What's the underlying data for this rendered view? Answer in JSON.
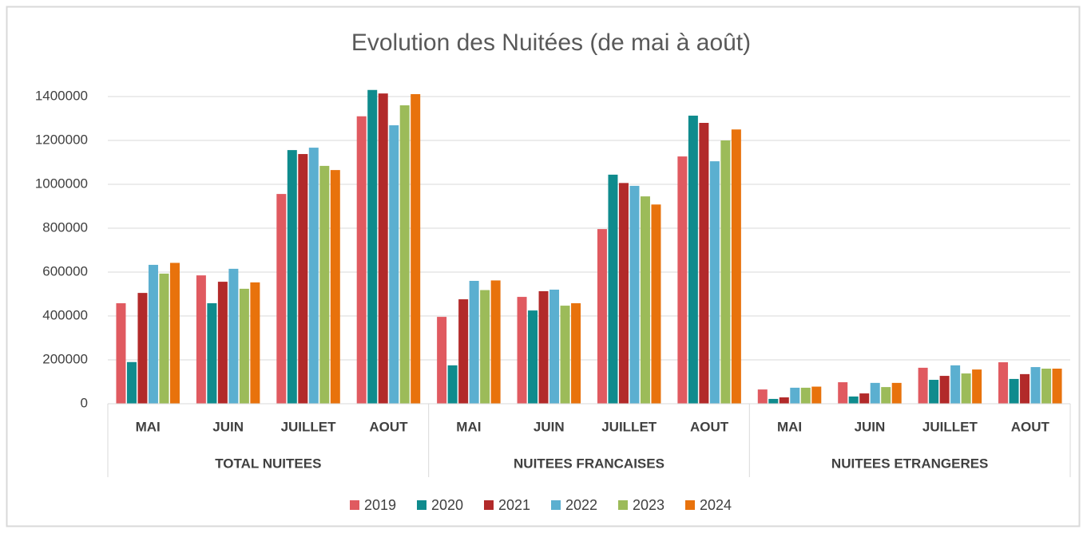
{
  "chart_data": {
    "type": "bar",
    "title": "Evolution des Nuitées (de mai à août)",
    "groups": [
      "TOTAL NUITEES",
      "NUITEES FRANCAISES",
      "NUITEES ETRANGERES"
    ],
    "categories": [
      "MAI",
      "JUIN",
      "JUILLET",
      "AOUT",
      "MAI",
      "JUIN",
      "JUILLET",
      "AOUT",
      "MAI",
      "JUIN",
      "JUILLET",
      "AOUT"
    ],
    "series": [
      {
        "name": "2019",
        "color": "#e05a60",
        "values": [
          458000,
          585000,
          956000,
          1310000,
          396000,
          487000,
          796000,
          1127000,
          65000,
          98000,
          164000,
          189000
        ]
      },
      {
        "name": "2020",
        "color": "#0f8b8d",
        "values": [
          190000,
          458000,
          1156000,
          1430000,
          175000,
          425000,
          1044000,
          1313000,
          22000,
          33000,
          109000,
          113000
        ]
      },
      {
        "name": "2021",
        "color": "#b22a2a",
        "values": [
          505000,
          556000,
          1138000,
          1414000,
          476000,
          513000,
          1006000,
          1280000,
          29000,
          47000,
          127000,
          135000
        ]
      },
      {
        "name": "2022",
        "color": "#5bafd0",
        "values": [
          633000,
          615000,
          1167000,
          1269000,
          560000,
          520000,
          993000,
          1105000,
          73000,
          95000,
          175000,
          167000
        ]
      },
      {
        "name": "2023",
        "color": "#9cbb59",
        "values": [
          593000,
          524000,
          1084000,
          1360000,
          518000,
          447000,
          945000,
          1200000,
          73000,
          76000,
          138000,
          160000
        ]
      },
      {
        "name": "2024",
        "color": "#e8720c",
        "values": [
          642000,
          553000,
          1065000,
          1411000,
          562000,
          458000,
          908000,
          1250000,
          78000,
          95000,
          156000,
          160000
        ]
      }
    ],
    "ylim": [
      0,
      1400000
    ],
    "yticks": [
      0,
      200000,
      400000,
      600000,
      800000,
      1000000,
      1200000,
      1400000
    ],
    "grid": true
  }
}
